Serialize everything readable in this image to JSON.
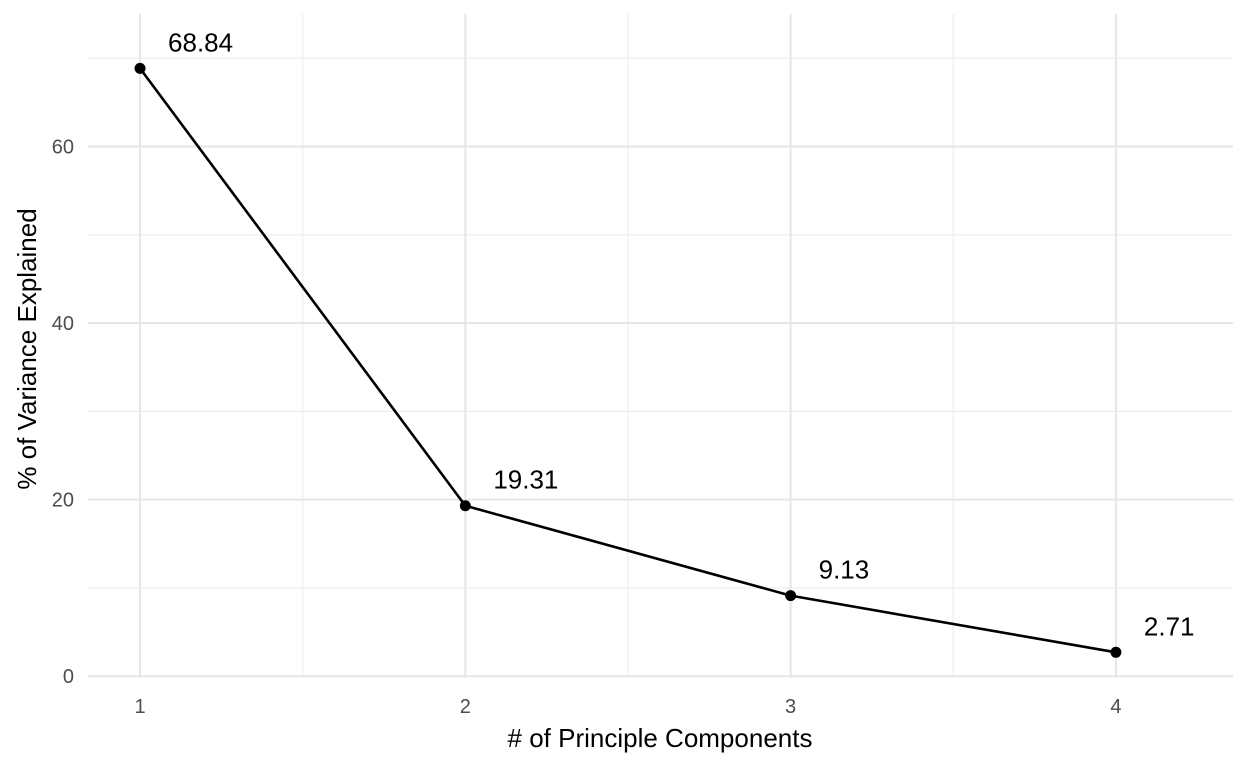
{
  "chart_data": {
    "type": "line",
    "title": "",
    "xlabel": "# of Principle Components",
    "ylabel": "% of Variance Explained",
    "x": [
      1,
      2,
      3,
      4
    ],
    "y": [
      68.84,
      19.31,
      9.13,
      2.71
    ],
    "data_labels": [
      "68.84",
      "19.31",
      "9.13",
      "2.71"
    ],
    "x_ticks": [
      1,
      2,
      3,
      4
    ],
    "y_ticks": [
      0,
      20,
      40,
      60
    ],
    "xlim": [
      0.84,
      4.36
    ],
    "ylim": [
      -0.2,
      75
    ],
    "grid": true,
    "legend": "none",
    "colors": {
      "line": "#000000",
      "point": "#000000",
      "grid_major": "#e6e6e6",
      "grid_minor": "#eeeeee",
      "tick_text": "#4d4d4d"
    }
  }
}
